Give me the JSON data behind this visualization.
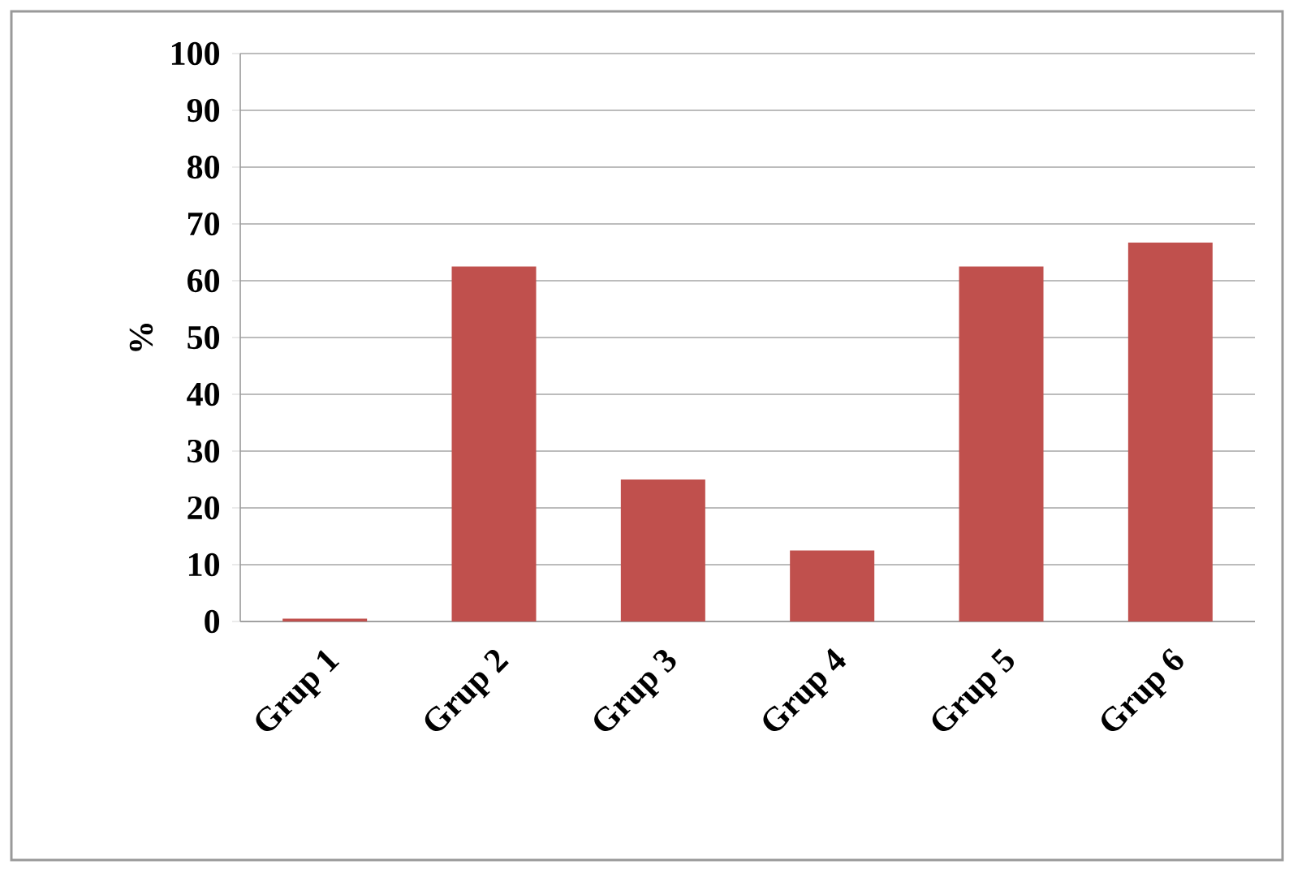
{
  "chart_data": {
    "type": "bar",
    "ylabel": "%",
    "categories": [
      "Grup 1",
      "Grup 2",
      "Grup 3",
      "Grup 4",
      "Grup 5",
      "Grup 6"
    ],
    "values": [
      0.5,
      62.5,
      25,
      12.5,
      62.5,
      66.7
    ],
    "color": "#c0504d",
    "ylim": [
      0,
      100
    ],
    "yticks": [
      0,
      10,
      20,
      30,
      40,
      50,
      60,
      70,
      80,
      90,
      100
    ],
    "grid": "y"
  }
}
